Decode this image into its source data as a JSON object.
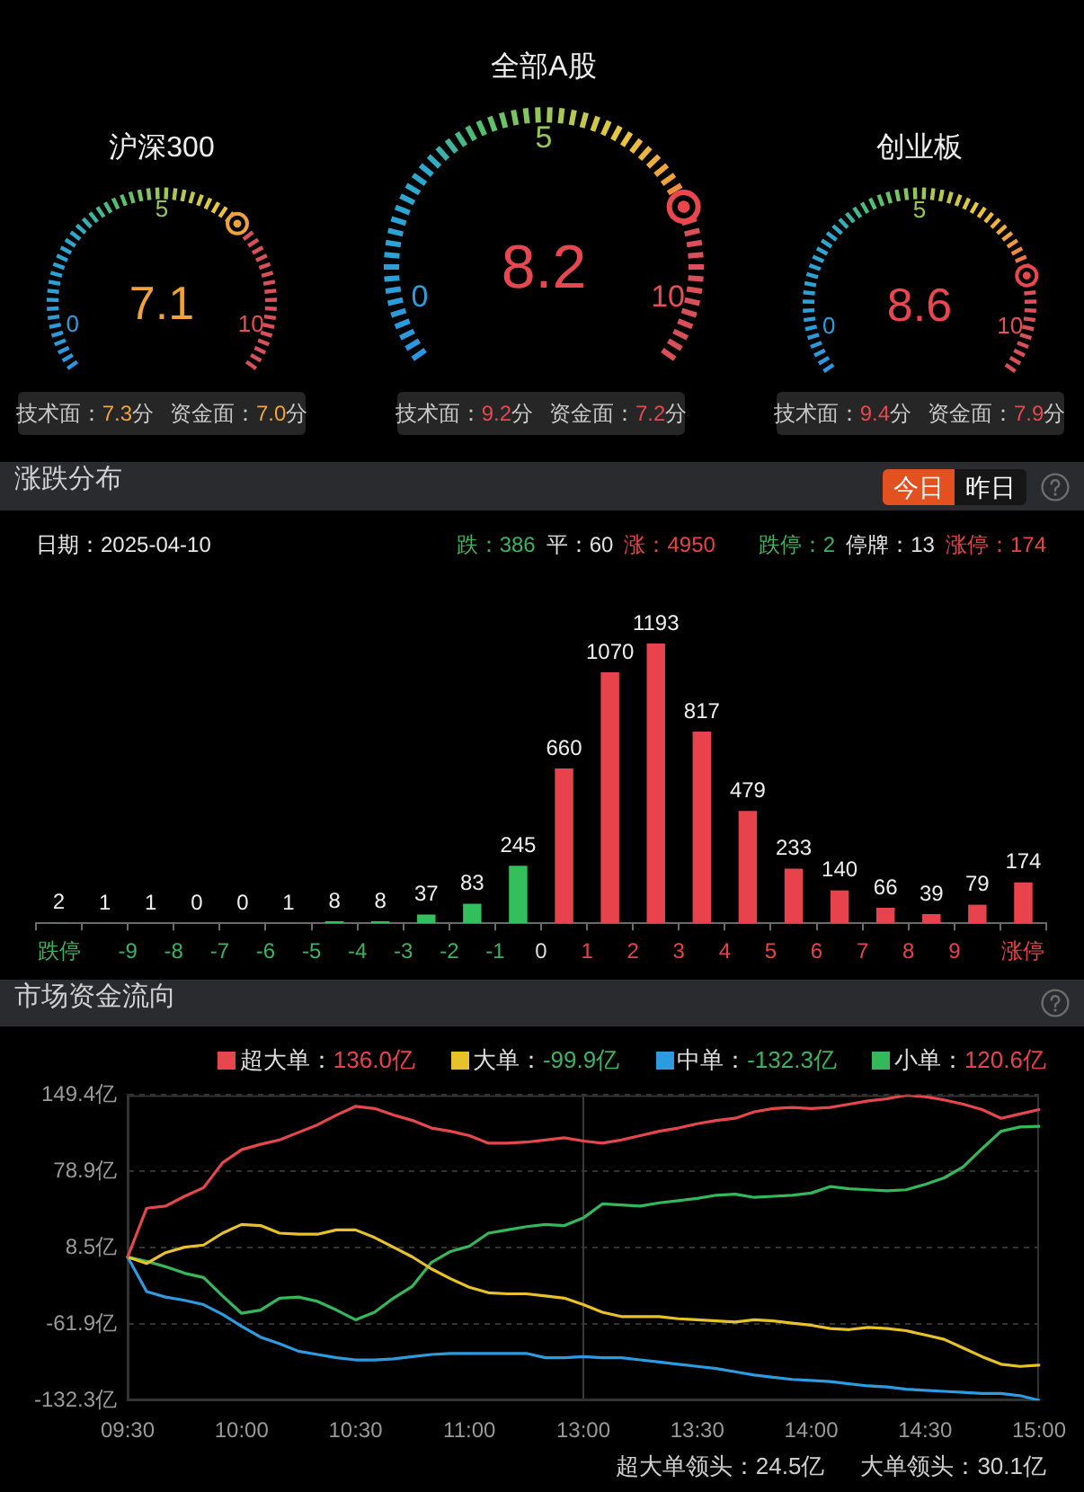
{
  "chart_data": [
    {
      "type": "other",
      "title": "沪深300",
      "values": [
        7.1
      ],
      "color": "#f0a33a",
      "data_labels": true,
      "annotations": [
        "0",
        "5",
        "10",
        "技术面：7.3分",
        "资金面：7.0分"
      ]
    },
    {
      "type": "other",
      "title": "全部A股",
      "values": [
        8.2
      ],
      "color": "#e8474f",
      "data_labels": true,
      "annotations": [
        "0",
        "5",
        "10",
        "技术面：9.2分",
        "资金面：7.2分"
      ]
    },
    {
      "type": "other",
      "title": "创业板",
      "values": [
        8.6
      ],
      "color": "#e8474f",
      "data_labels": true,
      "annotations": [
        "0",
        "5",
        "10",
        "技术面：9.4分",
        "资金面：7.9分"
      ]
    },
    {
      "type": "bar",
      "title": "涨跌分布",
      "x": [
        -10.5,
        -9.5,
        -8.5,
        -7.5,
        -6.5,
        -5.5,
        -4.5,
        -3.5,
        -2.5,
        -1.5,
        -0.5,
        0.5,
        1.5,
        2.5,
        3.5,
        4.5,
        5.5,
        6.5,
        7.5,
        8.5,
        9.5,
        10.5
      ],
      "values": [
        2,
        1,
        1,
        0,
        0,
        1,
        8,
        8,
        37,
        83,
        245,
        660,
        1070,
        1193,
        817,
        479,
        233,
        140,
        66,
        39,
        79,
        174
      ],
      "colors": [
        "#33c05c",
        "#33c05c",
        "#33c05c",
        "#33c05c",
        "#33c05c",
        "#33c05c",
        "#33c05c",
        "#33c05c",
        "#33c05c",
        "#33c05c",
        "#33c05c",
        "#e8434c",
        "#e8434c",
        "#e8434c",
        "#e8434c",
        "#e8434c",
        "#e8434c",
        "#e8434c",
        "#e8434c",
        "#e8434c",
        "#e8434c",
        "#e8434c"
      ],
      "xlim": [
        -11,
        11
      ],
      "xticks": [
        {
          "value": -11,
          "label": null
        },
        {
          "value": -10.5,
          "label": "跌停"
        },
        {
          "value": -10,
          "label": null
        },
        -9,
        -8,
        -7,
        -6,
        -5,
        -4,
        -3,
        -2,
        -1,
        0,
        1,
        2,
        3,
        4,
        5,
        6,
        7,
        8,
        9,
        {
          "value": 10,
          "label": null
        },
        {
          "value": 10.5,
          "label": "涨停"
        },
        {
          "value": 11,
          "label": null
        }
      ],
      "data_labels": true,
      "annotations": [
        "日期：2025-04-10",
        "跌：386",
        "平：60",
        "涨：4950",
        "跌停：2",
        "停牌：13",
        "涨停：174",
        "今日",
        "昨日"
      ]
    },
    {
      "type": "line",
      "title": "市场资金流向",
      "categories": [
        "09:30",
        null,
        null,
        null,
        null,
        null,
        "10:00",
        null,
        null,
        null,
        null,
        null,
        "10:30",
        null,
        null,
        null,
        null,
        null,
        "11:00",
        null,
        null,
        null,
        null,
        null,
        "13:00",
        null,
        null,
        null,
        null,
        null,
        "13:30",
        null,
        null,
        null,
        null,
        null,
        "14:00",
        null,
        null,
        null,
        null,
        null,
        "14:30",
        null,
        null,
        null,
        null,
        null,
        "15:00"
      ],
      "series": [
        {
          "name": "超大单：136.0亿",
          "color": "#e5474d",
          "values": [
            0,
            45,
            47,
            56,
            64,
            87,
            99,
            104,
            108,
            115,
            122,
            131,
            139,
            137,
            131,
            126,
            119,
            116,
            112,
            105,
            105,
            106,
            108,
            110,
            107,
            105,
            108,
            112,
            116,
            119,
            123,
            126,
            128,
            134,
            137,
            138,
            137,
            138,
            141,
            144,
            146,
            149.4,
            148,
            145,
            141,
            136,
            128,
            132,
            136.0
          ]
        },
        {
          "name": "大单：-99.9亿",
          "color": "#e8c22a",
          "values": [
            0,
            -6,
            4,
            9,
            11,
            22,
            30,
            29,
            22,
            21,
            21,
            25,
            25,
            18,
            9,
            0,
            -11,
            -20,
            -28,
            -33,
            -34,
            -34,
            -36,
            -38,
            -44,
            -51,
            -55,
            -55,
            -55,
            -57,
            -58,
            -59,
            -60,
            -58,
            -59,
            -61,
            -63,
            -66,
            -67,
            -65,
            -66,
            -68,
            -72,
            -76,
            -84,
            -92,
            -99,
            -101,
            -99.9
          ]
        },
        {
          "name": "中单：-132.3亿",
          "color": "#2d9be0",
          "values": [
            0,
            -32,
            -37,
            -40,
            -44,
            -53,
            -64,
            -74,
            -80,
            -87,
            -90,
            -93,
            -95,
            -95,
            -94,
            -92,
            -90,
            -89,
            -89,
            -89,
            -89,
            -89,
            -93,
            -93,
            -92,
            -93,
            -93,
            -95,
            -97,
            -99,
            -101,
            -103,
            -106,
            -109,
            -111,
            -113,
            -114,
            -115,
            -117,
            -119,
            -120,
            -122,
            -123,
            -124,
            -125,
            -126,
            -126,
            -128,
            -132.3
          ]
        },
        {
          "name": "小单：120.6亿",
          "color": "#34b85b",
          "values": [
            0,
            -4,
            -9,
            -15,
            -19,
            -36,
            -52,
            -49,
            -38,
            -37,
            -41,
            -49,
            -58,
            -51,
            -38,
            -27,
            -5,
            5,
            10,
            22,
            25,
            28,
            30,
            29,
            36,
            49,
            48,
            47,
            50,
            52,
            54,
            57,
            58,
            55,
            56,
            57,
            59,
            65,
            63,
            62,
            61,
            62,
            67,
            73,
            83,
            100,
            116,
            120,
            120.6
          ]
        }
      ],
      "ylim": [
        -132.3,
        149.4
      ],
      "yticks": [
        {
          "value": 149.4,
          "label": "149.4亿"
        },
        {
          "value": 78.9,
          "label": "78.9亿"
        },
        {
          "value": 8.5,
          "label": "8.5亿"
        },
        {
          "value": -61.9,
          "label": "-61.9亿"
        },
        {
          "value": -132.3,
          "label": "-132.3亿"
        }
      ],
      "grid": "y",
      "legend": "top right",
      "marker": "none",
      "ref_lines": [
        {
          "axis": "x",
          "value": "13:00",
          "color": "#3a3a3a"
        }
      ],
      "annotations": [
        "超大单领头：24.5亿",
        "大单领头：30.1亿"
      ]
    }
  ]
}
